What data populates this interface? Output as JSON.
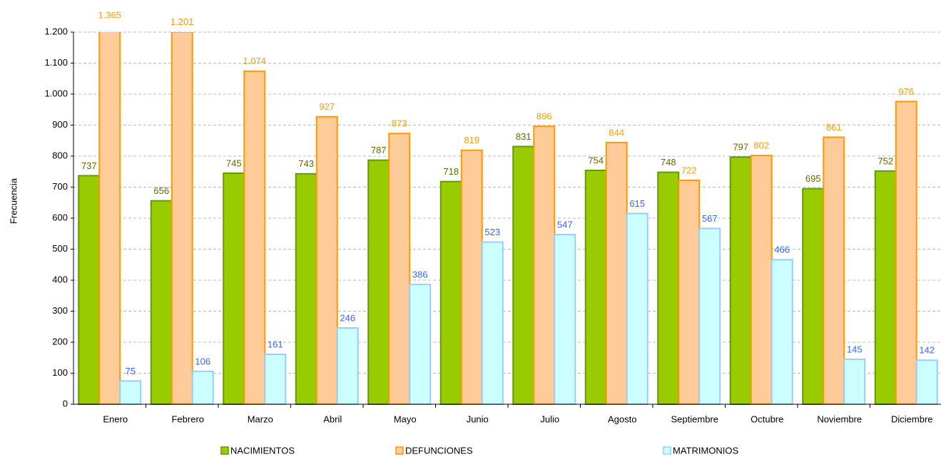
{
  "chart_data": {
    "type": "bar",
    "ylabel": "Frecuencia",
    "categories": [
      "Enero",
      "Febrero",
      "Marzo",
      "Abril",
      "Mayo",
      "Junio",
      "Julio",
      "Agosto",
      "Septiembre",
      "Octubre",
      "Noviembre",
      "Diciembre"
    ],
    "series": [
      {
        "name": "NACIMIENTOS",
        "color": "#99cc00",
        "stroke": "#669900",
        "label_color": "#666600",
        "values": [
          737,
          656,
          745,
          743,
          787,
          718,
          831,
          754,
          748,
          797,
          695,
          752
        ]
      },
      {
        "name": "DEFUNCIONES",
        "color": "#ffcc99",
        "stroke": "#ff9900",
        "label_color": "#ff9900",
        "values": [
          1365,
          1201,
          1074,
          927,
          873,
          819,
          896,
          844,
          722,
          802,
          861,
          976
        ],
        "value_labels": [
          "1.365",
          "1.201",
          "1.074",
          "927",
          "873",
          "819",
          "896",
          "844",
          "722",
          "802",
          "861",
          "976"
        ]
      },
      {
        "name": "MATRIMONIOS",
        "color": "#ccffff",
        "stroke": "#99ccff",
        "label_color": "#3366ff",
        "values": [
          75,
          106,
          161,
          246,
          386,
          523,
          547,
          615,
          567,
          466,
          145,
          142
        ]
      }
    ],
    "ylim": [
      0,
      1200
    ],
    "yticks": [
      0,
      100,
      200,
      300,
      400,
      500,
      600,
      700,
      800,
      900,
      {
        "value": 1000,
        "label": "1.000"
      },
      {
        "value": 1100,
        "label": "1.100"
      },
      {
        "value": 1200,
        "label": "1.200"
      }
    ],
    "grid": true,
    "legend": "bottom"
  }
}
